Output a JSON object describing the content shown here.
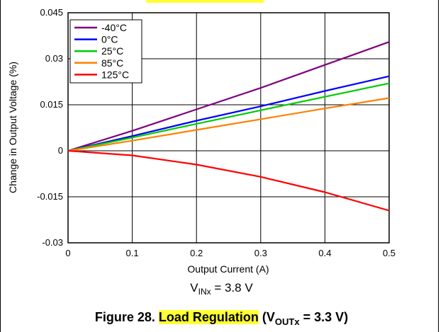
{
  "chart_data": {
    "type": "line",
    "xlabel": "Output Current (A)",
    "ylabel": "Change in Output Voltage (%)",
    "xlim": [
      0,
      0.5
    ],
    "ylim": [
      -0.03,
      0.045
    ],
    "x_ticks": [
      "0",
      "0.1",
      "0.2",
      "0.3",
      "0.4",
      "0.5"
    ],
    "y_ticks": [
      "0.045",
      "0.03",
      "0.015",
      "0",
      "-0.015",
      "-0.03"
    ],
    "grid": true,
    "legend_position": "top-left",
    "series": [
      {
        "name": "-40°C",
        "color": "#800080",
        "x": [
          0,
          0.1,
          0.2,
          0.3,
          0.4,
          0.5
        ],
        "y": [
          0,
          0.0065,
          0.0135,
          0.0205,
          0.028,
          0.0355
        ]
      },
      {
        "name": "0°C",
        "color": "#0000ff",
        "x": [
          0,
          0.1,
          0.2,
          0.3,
          0.4,
          0.5
        ],
        "y": [
          0,
          0.0048,
          0.0098,
          0.0145,
          0.0195,
          0.0243
        ]
      },
      {
        "name": "25°C",
        "color": "#00cc00",
        "x": [
          0,
          0.1,
          0.2,
          0.3,
          0.4,
          0.5
        ],
        "y": [
          0,
          0.0043,
          0.0088,
          0.0132,
          0.0176,
          0.022
        ]
      },
      {
        "name": "85°C",
        "color": "#ff8000",
        "x": [
          0,
          0.1,
          0.2,
          0.3,
          0.4,
          0.5
        ],
        "y": [
          0,
          0.0033,
          0.0068,
          0.0103,
          0.0138,
          0.0172
        ]
      },
      {
        "name": "125°C",
        "color": "#ff0000",
        "x": [
          0,
          0.1,
          0.2,
          0.3,
          0.4,
          0.5
        ],
        "y": [
          0,
          -0.0015,
          -0.0045,
          -0.0085,
          -0.0135,
          -0.0195
        ]
      }
    ]
  },
  "condition": {
    "prefix": "V",
    "sub": "INx",
    "suffix": " = 3.8 V"
  },
  "caption": {
    "lead": "Figure 28. ",
    "highlight": "Load Regulation",
    "open": " (V",
    "sub": "OUTx",
    "close": " = 3.3 V)"
  }
}
